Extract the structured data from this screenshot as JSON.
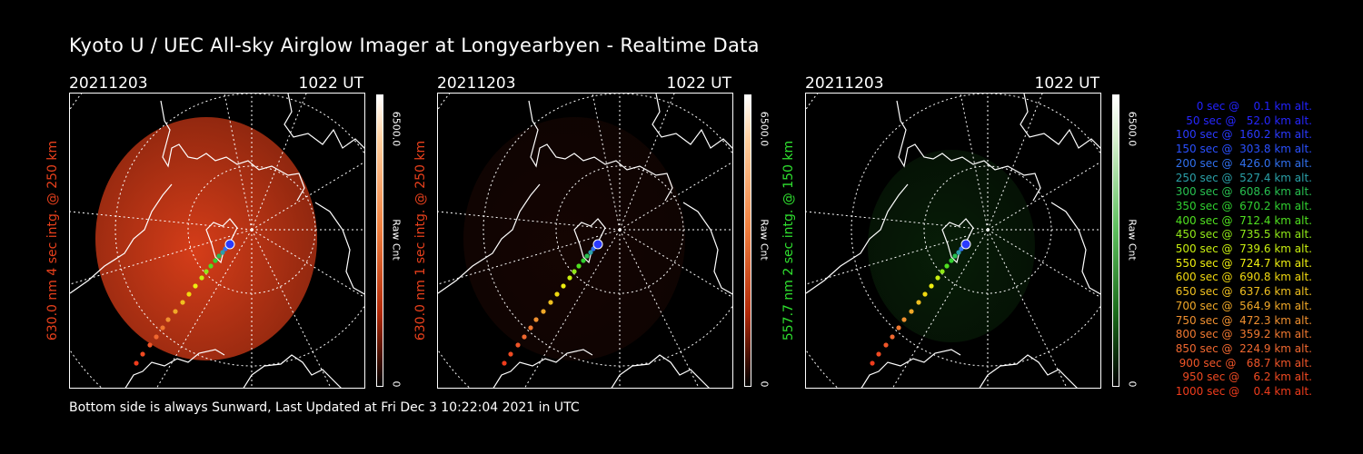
{
  "title": "Kyoto U / UEC All-sky Airglow Imager at Longyearbyen - Realtime Data",
  "footer": "Bottom side is always Sunward, Last Updated at Fri Dec  3 10:22:04 2021 in UTC",
  "panels": [
    {
      "date": "20211203",
      "time": "1022 UT",
      "ylabel": "630.0 nm 4 sec intg. @ 250 km",
      "label_color": "#e8401c",
      "cbar_max": "6500.0",
      "cbar_label": "Raw Cnt",
      "cbar_min": "0",
      "glow_color": "#e0401a",
      "glow_edge": "#9a2a10",
      "brightness": 0.95
    },
    {
      "date": "20211203",
      "time": "1022 UT",
      "ylabel": "630.0 nm 1 sec intg. @ 250 km",
      "label_color": "#e8401c",
      "cbar_max": "6500.0",
      "cbar_label": "Raw Cnt",
      "cbar_min": "0",
      "glow_color": "#3a0e06",
      "glow_edge": "#2a0a04",
      "brightness": 0.35
    },
    {
      "date": "20211203",
      "time": "1022 UT",
      "ylabel": "557.7 nm 2 sec intg. @ 150 km",
      "label_color": "#2fe02f",
      "cbar_max": "6500.0",
      "cbar_label": "Raw Cnt",
      "cbar_min": "0",
      "glow_color": "#124a12",
      "glow_edge": "#0c2c0c",
      "brightness": 0.4
    }
  ],
  "legend": [
    {
      "text": "0 sec @    0.1 km alt.",
      "color": "#2222ff"
    },
    {
      "text": "50 sec @   52.0 km alt.",
      "color": "#2626ff"
    },
    {
      "text": "100 sec @  160.2 km alt.",
      "color": "#2a3aff"
    },
    {
      "text": "150 sec @  303.8 km alt.",
      "color": "#2a50ff"
    },
    {
      "text": "200 sec @  426.0 km alt.",
      "color": "#3070ee"
    },
    {
      "text": "250 sec @  527.4 km alt.",
      "color": "#2aa0a8"
    },
    {
      "text": "300 sec @  608.6 km alt.",
      "color": "#28c050"
    },
    {
      "text": "350 sec @  670.2 km alt.",
      "color": "#30d030"
    },
    {
      "text": "400 sec @  712.4 km alt.",
      "color": "#50e020"
    },
    {
      "text": "450 sec @  735.5 km alt.",
      "color": "#90e818"
    },
    {
      "text": "500 sec @  739.6 km alt.",
      "color": "#c8ee10"
    },
    {
      "text": "550 sec @  724.7 km alt.",
      "color": "#eeee10"
    },
    {
      "text": "600 sec @  690.8 km alt.",
      "color": "#f0d810"
    },
    {
      "text": "650 sec @  637.6 km alt.",
      "color": "#f0c020"
    },
    {
      "text": "700 sec @  564.9 km alt.",
      "color": "#f0a828"
    },
    {
      "text": "750 sec @  472.3 km alt.",
      "color": "#f09030"
    },
    {
      "text": "800 sec @  359.2 km alt.",
      "color": "#f07830"
    },
    {
      "text": "850 sec @  224.9 km alt.",
      "color": "#f06830"
    },
    {
      "text": "900 sec @   68.7 km alt.",
      "color": "#f05528"
    },
    {
      "text": "950 sec @    6.2 km alt.",
      "color": "#f04a22"
    },
    {
      "text": "1000 sec @    0.4 km alt.",
      "color": "#f03c1c"
    }
  ]
}
